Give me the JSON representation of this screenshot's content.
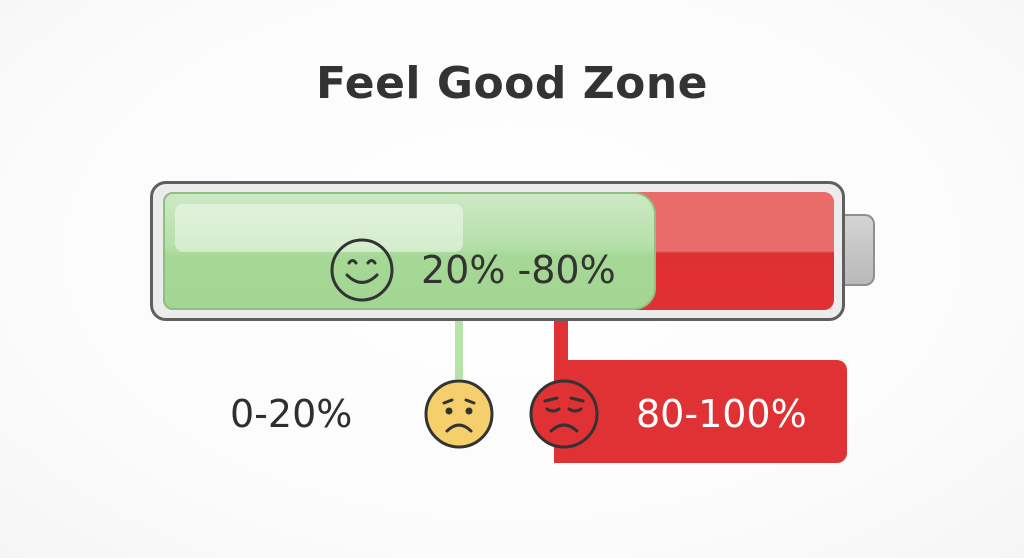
{
  "title": "Feel Good Zone",
  "battery": {
    "comfort_range_label": "20% -80%",
    "comfort_icon": "smiley-face-icon",
    "comfort_color": "#a5d895",
    "high_color": "#e03135",
    "levels": {
      "green_start": 0.2,
      "green_end": 0.8,
      "red_end": 1.0
    }
  },
  "low_zone": {
    "label": "0-20%",
    "icon": "sad-face-icon",
    "color": "#f5cf6b"
  },
  "high_zone": {
    "label": "80-100%",
    "icon": "tired-face-icon",
    "color": "#e03135"
  }
}
